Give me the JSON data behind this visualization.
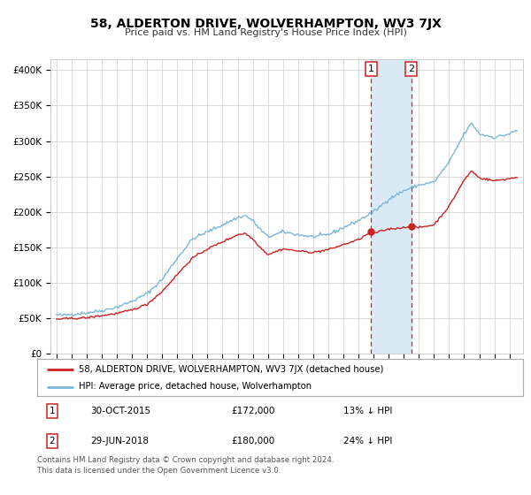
{
  "title": "58, ALDERTON DRIVE, WOLVERHAMPTON, WV3 7JX",
  "subtitle": "Price paid vs. HM Land Registry's House Price Index (HPI)",
  "yticks": [
    0,
    50000,
    100000,
    150000,
    200000,
    250000,
    300000,
    350000,
    400000
  ],
  "ytick_labels": [
    "£0",
    "£50K",
    "£100K",
    "£150K",
    "£200K",
    "£250K",
    "£300K",
    "£350K",
    "£400K"
  ],
  "ylim": [
    0,
    415000
  ],
  "hpi_color": "#7ab8d9",
  "price_color": "#cc2222",
  "highlight_color": "#daeaf5",
  "sale1_year_val": 2015.833,
  "sale2_year_val": 2018.5,
  "sale1_price": 172000,
  "sale2_price": 180000,
  "sale1_date": "30-OCT-2015",
  "sale2_date": "29-JUN-2018",
  "sale1_label": "13% ↓ HPI",
  "sale2_label": "24% ↓ HPI",
  "legend_label1": "58, ALDERTON DRIVE, WOLVERHAMPTON, WV3 7JX (detached house)",
  "legend_label2": "HPI: Average price, detached house, Wolverhampton",
  "footnote": "Contains HM Land Registry data © Crown copyright and database right 2024.\nThis data is licensed under the Open Government Licence v3.0.",
  "background_color": "#ffffff",
  "grid_color": "#cccccc",
  "hpi_keypoints": [
    [
      1995.0,
      55000
    ],
    [
      1995.5,
      54500
    ],
    [
      1996.0,
      56000
    ],
    [
      1997.0,
      58000
    ],
    [
      1998.0,
      61000
    ],
    [
      1999.0,
      66000
    ],
    [
      2000.0,
      74000
    ],
    [
      2001.0,
      85000
    ],
    [
      2002.0,
      105000
    ],
    [
      2003.0,
      135000
    ],
    [
      2004.0,
      162000
    ],
    [
      2005.0,
      172000
    ],
    [
      2006.0,
      182000
    ],
    [
      2007.0,
      192000
    ],
    [
      2007.5,
      195000
    ],
    [
      2008.0,
      188000
    ],
    [
      2008.5,
      175000
    ],
    [
      2009.0,
      165000
    ],
    [
      2009.5,
      168000
    ],
    [
      2010.0,
      172000
    ],
    [
      2011.0,
      168000
    ],
    [
      2012.0,
      165000
    ],
    [
      2013.0,
      168000
    ],
    [
      2014.0,
      178000
    ],
    [
      2015.0,
      188000
    ],
    [
      2016.0,
      200000
    ],
    [
      2017.0,
      218000
    ],
    [
      2018.0,
      230000
    ],
    [
      2019.0,
      238000
    ],
    [
      2020.0,
      242000
    ],
    [
      2021.0,
      270000
    ],
    [
      2022.0,
      310000
    ],
    [
      2022.5,
      325000
    ],
    [
      2023.0,
      310000
    ],
    [
      2024.0,
      305000
    ],
    [
      2025.0,
      310000
    ],
    [
      2025.5,
      315000
    ]
  ],
  "price_keypoints": [
    [
      1995.0,
      49000
    ],
    [
      1996.0,
      50000
    ],
    [
      1997.0,
      51000
    ],
    [
      1998.0,
      54000
    ],
    [
      1999.0,
      57000
    ],
    [
      2000.0,
      62000
    ],
    [
      2001.0,
      70000
    ],
    [
      2002.0,
      88000
    ],
    [
      2003.0,
      112000
    ],
    [
      2004.0,
      135000
    ],
    [
      2005.0,
      148000
    ],
    [
      2006.0,
      158000
    ],
    [
      2007.0,
      168000
    ],
    [
      2007.5,
      170000
    ],
    [
      2008.0,
      162000
    ],
    [
      2008.5,
      150000
    ],
    [
      2009.0,
      140000
    ],
    [
      2009.5,
      144000
    ],
    [
      2010.0,
      148000
    ],
    [
      2011.0,
      145000
    ],
    [
      2012.0,
      143000
    ],
    [
      2013.0,
      147000
    ],
    [
      2014.0,
      154000
    ],
    [
      2015.0,
      161000
    ],
    [
      2015.833,
      172000
    ],
    [
      2016.0,
      170000
    ],
    [
      2017.0,
      176000
    ],
    [
      2018.0,
      178000
    ],
    [
      2018.5,
      180000
    ],
    [
      2019.0,
      178000
    ],
    [
      2020.0,
      182000
    ],
    [
      2021.0,
      208000
    ],
    [
      2022.0,
      245000
    ],
    [
      2022.5,
      258000
    ],
    [
      2023.0,
      248000
    ],
    [
      2024.0,
      244000
    ],
    [
      2025.0,
      247000
    ],
    [
      2025.5,
      249000
    ]
  ]
}
